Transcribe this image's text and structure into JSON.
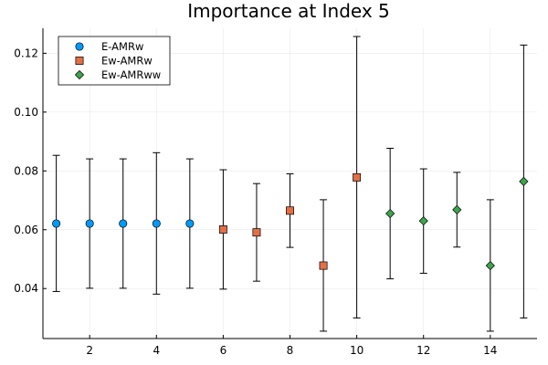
{
  "chart_data": {
    "type": "scatter",
    "title": "Importance at Index 5",
    "xlabel": "",
    "ylabel": "",
    "xlim": [
      0.6,
      15.4
    ],
    "ylim": [
      0.023,
      0.1285
    ],
    "x_ticks": [
      2,
      4,
      6,
      8,
      10,
      12,
      14
    ],
    "y_ticks": [
      0.04,
      0.06,
      0.08,
      0.1,
      0.12
    ],
    "y_tick_labels": [
      "0.04",
      "0.06",
      "0.08",
      "0.10",
      "0.12"
    ],
    "grid": true,
    "legend_position": "top-left",
    "error_bars": true,
    "series": [
      {
        "name": "E-AMRw",
        "marker": "circle",
        "color": "#009AFA",
        "points": [
          {
            "x": 1,
            "y": 0.0621,
            "low": 0.039,
            "high": 0.0853
          },
          {
            "x": 2,
            "y": 0.0621,
            "low": 0.0401,
            "high": 0.0841
          },
          {
            "x": 3,
            "y": 0.0621,
            "low": 0.0401,
            "high": 0.0841
          },
          {
            "x": 4,
            "y": 0.0621,
            "low": 0.0381,
            "high": 0.0862
          },
          {
            "x": 5,
            "y": 0.0621,
            "low": 0.0401,
            "high": 0.0841
          }
        ]
      },
      {
        "name": "Ew-AMRw",
        "marker": "square",
        "color": "#E36F47",
        "points": [
          {
            "x": 6,
            "y": 0.0601,
            "low": 0.0398,
            "high": 0.0804
          },
          {
            "x": 7,
            "y": 0.0591,
            "low": 0.0425,
            "high": 0.0757
          },
          {
            "x": 8,
            "y": 0.0665,
            "low": 0.054,
            "high": 0.079
          },
          {
            "x": 9,
            "y": 0.0478,
            "low": 0.0255,
            "high": 0.0702
          },
          {
            "x": 10,
            "y": 0.0778,
            "low": 0.03,
            "high": 0.1257
          }
        ]
      },
      {
        "name": "Ew-AMRww",
        "marker": "diamond",
        "color": "#3EA44E",
        "points": [
          {
            "x": 11,
            "y": 0.0655,
            "low": 0.0433,
            "high": 0.0877
          },
          {
            "x": 12,
            "y": 0.063,
            "low": 0.0452,
            "high": 0.0807
          },
          {
            "x": 13,
            "y": 0.0668,
            "low": 0.0541,
            "high": 0.0795
          },
          {
            "x": 14,
            "y": 0.0478,
            "low": 0.0255,
            "high": 0.0702
          },
          {
            "x": 15,
            "y": 0.0764,
            "low": 0.03,
            "high": 0.1228
          }
        ]
      }
    ]
  }
}
